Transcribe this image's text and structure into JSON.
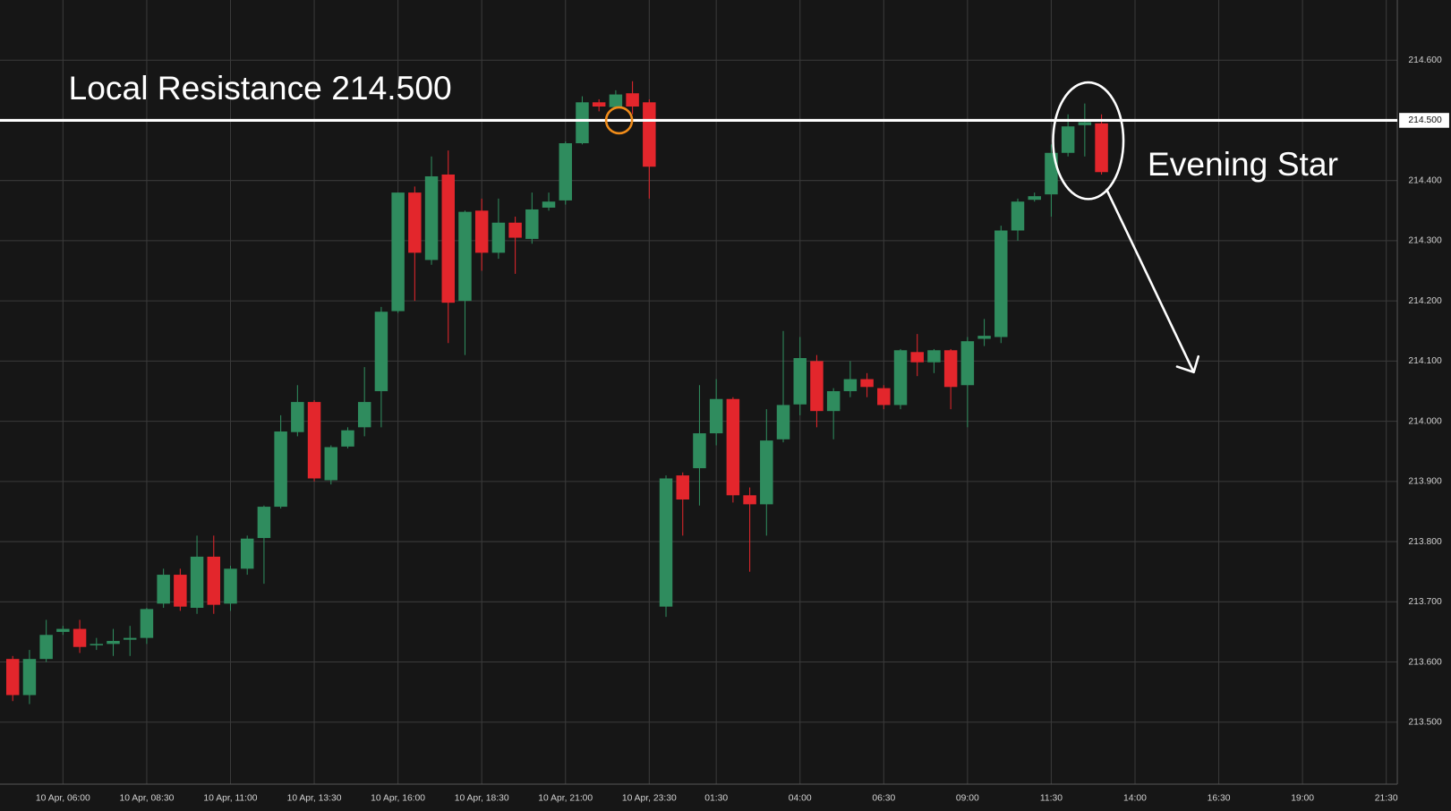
{
  "chart_data": {
    "type": "candlestick",
    "grid": true,
    "xlim": [
      4.12,
      45.83
    ],
    "ylim": [
      213.397,
      214.7
    ],
    "xticks": [
      {
        "value": 6,
        "label": "10 Apr, 06:00"
      },
      {
        "value": 8.5,
        "label": "10 Apr, 08:30"
      },
      {
        "value": 11,
        "label": "10 Apr, 11:00"
      },
      {
        "value": 13.5,
        "label": "10 Apr, 13:30"
      },
      {
        "value": 16,
        "label": "10 Apr, 16:00"
      },
      {
        "value": 18.5,
        "label": "10 Apr, 18:30"
      },
      {
        "value": 21,
        "label": "10 Apr, 21:00"
      },
      {
        "value": 23.5,
        "label": "10 Apr, 23:30"
      },
      {
        "value": 25.5,
        "label": "01:30"
      },
      {
        "value": 28,
        "label": "04:00"
      },
      {
        "value": 30.5,
        "label": "06:30"
      },
      {
        "value": 33,
        "label": "09:00"
      },
      {
        "value": 35.5,
        "label": "11:30"
      },
      {
        "value": 38,
        "label": "14:00"
      },
      {
        "value": 40.5,
        "label": "16:30"
      },
      {
        "value": 43,
        "label": "19:00"
      },
      {
        "value": 45.5,
        "label": "21:30"
      }
    ],
    "yticks": [
      {
        "value": 213.5,
        "label": "213.500"
      },
      {
        "value": 213.6,
        "label": "213.600"
      },
      {
        "value": 213.7,
        "label": "213.700"
      },
      {
        "value": 213.8,
        "label": "213.800"
      },
      {
        "value": 213.9,
        "label": "213.900"
      },
      {
        "value": 214.0,
        "label": "214.000"
      },
      {
        "value": 214.1,
        "label": "214.100"
      },
      {
        "value": 214.2,
        "label": "214.200"
      },
      {
        "value": 214.3,
        "label": "214.300"
      },
      {
        "value": 214.4,
        "label": "214.400"
      },
      {
        "value": 214.6,
        "label": "214.600"
      }
    ],
    "up_color": "#2f8c5e",
    "down_color": "#e3262c",
    "x": [
      4.5,
      5,
      5.5,
      6,
      6.5,
      7,
      7.5,
      8,
      8.5,
      9,
      9.5,
      10,
      10.5,
      11,
      11.5,
      12,
      12.5,
      13,
      13.5,
      14,
      14.5,
      15,
      15.5,
      16,
      16.5,
      17,
      17.5,
      18,
      18.5,
      19,
      19.5,
      20,
      20.5,
      21,
      21.5,
      22,
      22.5,
      23,
      23.5,
      24,
      24.5,
      25,
      25.5,
      26,
      26.5,
      27,
      27.5,
      28,
      28.5,
      29,
      29.5,
      30,
      30.5,
      31,
      31.5,
      32,
      32.5,
      33,
      33.5,
      34,
      34.5,
      35,
      35.5,
      36,
      36.5,
      37
    ],
    "open": [
      213.605,
      213.545,
      213.605,
      213.65,
      213.655,
      213.63,
      213.63,
      213.637,
      213.64,
      213.697,
      213.745,
      213.69,
      213.775,
      213.697,
      213.755,
      213.806,
      213.858,
      213.982,
      214.032,
      213.902,
      213.958,
      213.99,
      214.05,
      214.183,
      214.38,
      214.268,
      214.41,
      214.2,
      214.35,
      214.28,
      214.33,
      214.303,
      214.355,
      214.367,
      214.462,
      214.53,
      214.522,
      214.545,
      214.53,
      213.692,
      213.91,
      213.922,
      213.98,
      214.037,
      213.877,
      213.862,
      213.97,
      214.028,
      214.1,
      214.017,
      214.05,
      214.07,
      214.055,
      214.027,
      214.115,
      214.098,
      214.118,
      214.06,
      214.137,
      214.14,
      214.317,
      214.368,
      214.377,
      214.446,
      214.492,
      214.495
    ],
    "high": [
      213.61,
      213.62,
      213.67,
      213.66,
      213.67,
      213.64,
      213.655,
      213.66,
      213.69,
      213.755,
      213.755,
      213.81,
      213.81,
      213.76,
      213.81,
      213.86,
      214.01,
      214.06,
      214.035,
      213.96,
      213.99,
      214.09,
      214.19,
      214.38,
      214.39,
      214.44,
      214.45,
      214.35,
      214.37,
      214.37,
      214.34,
      214.38,
      214.38,
      214.465,
      214.54,
      214.535,
      214.55,
      214.565,
      214.535,
      213.91,
      213.915,
      214.06,
      214.07,
      214.04,
      213.89,
      214.02,
      214.15,
      214.14,
      214.11,
      214.055,
      214.1,
      214.08,
      214.06,
      214.12,
      214.145,
      214.12,
      214.12,
      214.14,
      214.17,
      214.325,
      214.37,
      214.38,
      214.46,
      214.51,
      214.528,
      214.51
    ],
    "low": [
      213.535,
      213.53,
      213.6,
      213.645,
      213.615,
      213.62,
      213.61,
      213.61,
      213.63,
      213.69,
      213.685,
      213.68,
      213.68,
      213.685,
      213.745,
      213.73,
      213.855,
      213.975,
      213.9,
      213.895,
      213.955,
      213.975,
      213.99,
      214.18,
      214.2,
      214.26,
      214.13,
      214.11,
      214.25,
      214.27,
      214.245,
      214.295,
      214.35,
      214.36,
      214.46,
      214.515,
      214.52,
      214.51,
      214.37,
      213.675,
      213.81,
      213.86,
      213.96,
      213.865,
      213.75,
      213.81,
      213.965,
      214.01,
      213.99,
      213.97,
      214.04,
      214.04,
      214.02,
      214.02,
      214.075,
      214.08,
      214.02,
      213.99,
      214.125,
      214.13,
      214.3,
      214.365,
      214.34,
      214.44,
      214.44,
      214.41
    ],
    "close": [
      213.545,
      213.605,
      213.645,
      213.655,
      213.625,
      213.63,
      213.635,
      213.64,
      213.688,
      213.745,
      213.692,
      213.775,
      213.695,
      213.755,
      213.805,
      213.858,
      213.983,
      214.032,
      213.905,
      213.957,
      213.985,
      214.032,
      214.182,
      214.38,
      214.28,
      214.407,
      214.197,
      214.348,
      214.28,
      214.33,
      214.305,
      214.352,
      214.365,
      214.462,
      214.53,
      214.523,
      214.543,
      214.523,
      214.423,
      213.905,
      213.87,
      213.98,
      214.037,
      213.877,
      213.862,
      213.968,
      214.027,
      214.105,
      214.017,
      214.05,
      214.07,
      214.057,
      214.027,
      214.118,
      214.098,
      214.118,
      214.057,
      214.133,
      214.142,
      214.317,
      214.365,
      214.374,
      214.446,
      214.49,
      214.497,
      214.414
    ],
    "resistance": {
      "value": 214.5,
      "label": "214.500",
      "text": "Local Resistance 214.500"
    },
    "annotation": "Evening Star"
  }
}
